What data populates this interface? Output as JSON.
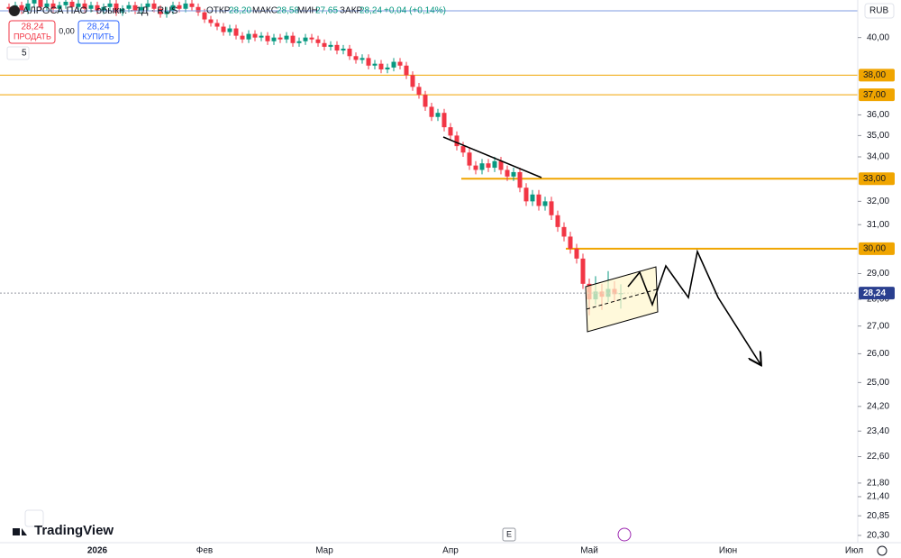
{
  "header": {
    "symbol": "АЛРОСА ПАО - обыкн. · 1Д · RUS",
    "open_label": "ОТКР",
    "open": "28,20",
    "high_label": "МАКС",
    "high": "28,58",
    "low_label": "МИН",
    "low": "27,65",
    "close_label": "ЗАКР",
    "close": "28,24",
    "change": "+0,04 (+0,14%)",
    "sell_price": "28,24",
    "sell_label": "ПРОДАТЬ",
    "spread": "0,00",
    "buy_price": "28,24",
    "buy_label": "КУПИТЬ",
    "indicators_count": "5",
    "currency": "RUB",
    "events": "E",
    "logo": "TradingView"
  },
  "chart_data": {
    "type": "candlestick",
    "log_scale": true,
    "grid": false,
    "up_color": "#089981",
    "down_color": "#f23645",
    "ylim": [
      20.1,
      42.1
    ],
    "yticks": [
      {
        "value": 40,
        "label": "40,00"
      },
      {
        "value": 36,
        "label": "36,00"
      },
      {
        "value": 35,
        "label": "35,00"
      },
      {
        "value": 34,
        "label": "34,00"
      },
      {
        "value": 32,
        "label": "32,00"
      },
      {
        "value": 31,
        "label": "31,00"
      },
      {
        "value": 29,
        "label": "29,00"
      },
      {
        "value": 28,
        "label": "28,00"
      },
      {
        "value": 27,
        "label": "27,00"
      },
      {
        "value": 26,
        "label": "26,00"
      },
      {
        "value": 25,
        "label": "25,00"
      },
      {
        "value": 24.2,
        "label": "24,20"
      },
      {
        "value": 23.4,
        "label": "23,40"
      },
      {
        "value": 22.6,
        "label": "22,60"
      },
      {
        "value": 21.8,
        "label": "21,80"
      },
      {
        "value": 21.4,
        "label": "21,40"
      },
      {
        "value": 20.85,
        "label": "20,85"
      },
      {
        "value": 20.3,
        "label": "20,30"
      }
    ],
    "levels": [
      {
        "value": 38,
        "label": "38,00",
        "color": "#f0a500"
      },
      {
        "value": 37,
        "label": "37,00",
        "color": "#f0a500"
      },
      {
        "value": 33,
        "label": "33,00",
        "color": "#f0a500"
      },
      {
        "value": 30,
        "label": "30,00",
        "color": "#f0a500"
      }
    ],
    "last_price": {
      "value": 28.24,
      "label": "28,24",
      "color": "#2a3f8f"
    },
    "categories": [
      null,
      null,
      null,
      null,
      null,
      null,
      null,
      null,
      null,
      null,
      null,
      null,
      null,
      null,
      "2026",
      null,
      null,
      null,
      null,
      null,
      null,
      null,
      null,
      null,
      null,
      null,
      null,
      null,
      null,
      null,
      null,
      "Фев",
      null,
      null,
      null,
      null,
      null,
      null,
      null,
      null,
      null,
      null,
      null,
      null,
      null,
      null,
      null,
      null,
      null,
      null,
      "Мар",
      null,
      null,
      null,
      null,
      null,
      null,
      null,
      null,
      null,
      null,
      null,
      null,
      null,
      null,
      null,
      null,
      null,
      null,
      null,
      "Апр",
      null,
      null,
      null,
      null,
      null,
      null,
      null,
      null,
      null,
      null,
      null,
      null,
      null,
      null,
      null,
      null,
      null,
      null,
      null,
      null,
      null,
      "Май",
      null,
      null,
      null,
      null,
      null,
      null,
      null,
      null,
      null,
      null,
      null,
      null,
      null,
      null,
      null,
      null,
      null,
      null,
      null,
      null,
      null,
      "Июн",
      null,
      null,
      null,
      null,
      null,
      null,
      null,
      null,
      null,
      null,
      null,
      null,
      null,
      null,
      null,
      null,
      null,
      null,
      null,
      "Июл"
    ],
    "open": [
      41.7,
      41.6,
      41.8,
      41.5,
      41.9,
      42.1,
      41.7,
      41.9,
      41.6,
      41.8,
      42.0,
      41.7,
      41.9,
      41.6,
      41.8,
      41.5,
      41.7,
      41.9,
      41.4,
      41.6,
      41.8,
      41.5,
      41.7,
      41.9,
      41.6,
      41.3,
      41.5,
      41.8,
      41.6,
      41.9,
      41.7,
      41.4,
      41.0,
      40.8,
      40.6,
      40.3,
      40.5,
      40.1,
      39.9,
      40.2,
      40.0,
      40.1,
      39.8,
      40.0,
      39.9,
      40.1,
      39.7,
      39.8,
      40.0,
      39.9,
      39.7,
      39.5,
      39.6,
      39.3,
      39.4,
      39.0,
      38.8,
      38.9,
      38.5,
      38.6,
      38.3,
      38.4,
      38.7,
      38.5,
      38.0,
      37.4,
      37.0,
      36.4,
      35.9,
      36.1,
      35.4,
      35.0,
      34.5,
      34.2,
      33.6,
      33.4,
      33.7,
      33.5,
      33.8,
      33.4,
      33.1,
      33.3,
      32.6,
      32.0,
      32.3,
      31.8,
      32.0,
      31.4,
      30.9,
      30.5,
      30.0,
      29.6,
      28.6,
      28.0,
      28.3,
      28.1,
      28.4,
      28.2,
      null,
      null,
      null,
      null,
      null,
      null,
      null,
      null,
      null,
      null,
      null,
      null,
      null,
      null,
      null,
      null,
      null,
      null,
      null,
      null,
      null,
      null,
      null,
      null,
      null,
      null,
      null,
      null,
      null,
      null,
      null,
      null,
      null,
      null,
      null,
      null,
      null
    ],
    "high": [
      41.9,
      42.0,
      42.0,
      42.1,
      42.3,
      42.3,
      42.1,
      42.1,
      42.0,
      42.2,
      42.2,
      42.1,
      42.1,
      42.0,
      42.0,
      41.9,
      42.1,
      42.1,
      41.8,
      42.0,
      42.0,
      41.9,
      42.1,
      42.1,
      41.8,
      41.7,
      42.0,
      42.0,
      42.1,
      42.1,
      41.9,
      41.6,
      41.2,
      41.0,
      40.8,
      40.7,
      40.7,
      40.3,
      40.4,
      40.4,
      40.3,
      40.3,
      40.2,
      40.2,
      40.3,
      40.3,
      40.0,
      40.2,
      40.2,
      40.1,
      39.9,
      39.8,
      39.8,
      39.6,
      39.6,
      39.2,
      39.1,
      39.1,
      38.8,
      38.8,
      38.6,
      38.9,
      38.9,
      38.7,
      38.2,
      37.6,
      37.2,
      36.6,
      36.3,
      36.3,
      35.6,
      35.2,
      34.7,
      34.4,
      33.8,
      33.9,
      33.9,
      34.0,
      34.0,
      33.6,
      33.5,
      33.5,
      32.8,
      32.5,
      32.5,
      32.2,
      32.2,
      31.6,
      31.1,
      30.7,
      30.2,
      29.8,
      28.8,
      28.9,
      28.6,
      29.1,
      28.7,
      28.58,
      null,
      null,
      null,
      null,
      null,
      null,
      null,
      null,
      null,
      null,
      null,
      null,
      null,
      null,
      null,
      null,
      null,
      null,
      null,
      null,
      null,
      null,
      null,
      null,
      null,
      null,
      null,
      null,
      null,
      null,
      null,
      null,
      null,
      null,
      null,
      null,
      null
    ],
    "low": [
      41.4,
      41.4,
      41.3,
      41.3,
      41.7,
      41.5,
      41.5,
      41.4,
      41.4,
      41.6,
      41.5,
      41.5,
      41.4,
      41.4,
      41.3,
      41.3,
      41.5,
      41.2,
      41.2,
      41.4,
      41.3,
      41.3,
      41.5,
      41.4,
      41.1,
      41.1,
      41.3,
      41.4,
      41.4,
      41.5,
      41.2,
      40.8,
      40.6,
      40.4,
      40.1,
      40.1,
      39.9,
      39.7,
      39.7,
      39.8,
      39.8,
      39.6,
      39.6,
      39.7,
      39.7,
      39.5,
      39.5,
      39.6,
      39.7,
      39.5,
      39.3,
      39.3,
      39.1,
      39.1,
      38.8,
      38.6,
      38.6,
      38.3,
      38.3,
      38.1,
      38.1,
      38.2,
      38.3,
      37.8,
      37.2,
      36.8,
      36.2,
      35.7,
      35.7,
      35.2,
      34.8,
      34.3,
      34.0,
      33.4,
      33.2,
      33.2,
      33.3,
      33.3,
      33.2,
      32.9,
      32.9,
      32.4,
      31.8,
      31.8,
      31.6,
      31.6,
      31.2,
      30.7,
      30.3,
      29.8,
      29.4,
      28.4,
      27.4,
      27.8,
      27.6,
      27.9,
      27.9,
      27.65,
      null,
      null,
      null,
      null,
      null,
      null,
      null,
      null,
      null,
      null,
      null,
      null,
      null,
      null,
      null,
      null,
      null,
      null,
      null,
      null,
      null,
      null,
      null,
      null,
      null,
      null,
      null,
      null,
      null,
      null,
      null,
      null,
      null,
      null,
      null,
      null,
      null
    ],
    "close": [
      41.6,
      41.8,
      41.5,
      41.9,
      42.1,
      41.7,
      41.9,
      41.6,
      41.8,
      42.0,
      41.7,
      41.9,
      41.6,
      41.8,
      41.5,
      41.7,
      41.9,
      41.4,
      41.6,
      41.8,
      41.5,
      41.7,
      41.9,
      41.6,
      41.3,
      41.5,
      41.8,
      41.6,
      41.9,
      41.7,
      41.4,
      41.0,
      40.8,
      40.6,
      40.3,
      40.5,
      40.1,
      39.9,
      40.2,
      40.0,
      40.1,
      39.8,
      40.0,
      39.9,
      40.1,
      39.7,
      39.8,
      40.0,
      39.9,
      39.7,
      39.5,
      39.6,
      39.3,
      39.4,
      39.0,
      38.8,
      38.9,
      38.5,
      38.6,
      38.3,
      38.4,
      38.7,
      38.5,
      38.0,
      37.4,
      37.0,
      36.4,
      35.9,
      36.1,
      35.4,
      35.0,
      34.5,
      34.2,
      33.6,
      33.4,
      33.7,
      33.5,
      33.8,
      33.4,
      33.1,
      33.3,
      32.6,
      32.0,
      32.3,
      31.8,
      32.0,
      31.4,
      30.9,
      30.5,
      30.0,
      29.6,
      28.6,
      28.0,
      28.3,
      28.1,
      28.4,
      28.2,
      28.24,
      null,
      null,
      null,
      null,
      null,
      null,
      null,
      null,
      null,
      null,
      null,
      null,
      null,
      null,
      null,
      null,
      null,
      null,
      null,
      null,
      null,
      null,
      null,
      null,
      null,
      null,
      null,
      null,
      null,
      null,
      null,
      null,
      null,
      null,
      null,
      null,
      null
    ]
  }
}
